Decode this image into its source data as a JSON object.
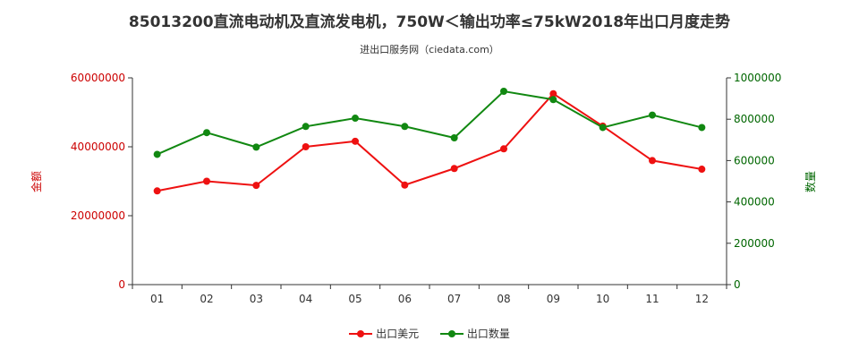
{
  "chart_data": {
    "type": "line",
    "title": "85013200直流电动机及直流发电机，750W＜输出功率≤75kW2018年出口月度走势",
    "subtitle": "进出口服务网（ciedata.com）",
    "categories": [
      "01",
      "02",
      "03",
      "04",
      "05",
      "06",
      "07",
      "08",
      "09",
      "10",
      "11",
      "12"
    ],
    "y_left": {
      "label": "金额",
      "ylim": [
        0,
        60000000
      ],
      "ticks": [
        "0",
        "20000000",
        "40000000",
        "60000000"
      ],
      "tick_values": [
        0,
        20000000,
        40000000,
        60000000
      ],
      "color": "#cc0000"
    },
    "y_right": {
      "label": "数量",
      "ylim": [
        0,
        1000000
      ],
      "ticks": [
        "0",
        "200000",
        "400000",
        "600000",
        "800000",
        "1000000"
      ],
      "tick_values": [
        0,
        200000,
        400000,
        600000,
        800000,
        1000000
      ],
      "color": "#006600"
    },
    "series": [
      {
        "name": "出口美元",
        "axis": "left",
        "color": "#ee1111",
        "values": [
          27200000,
          30000000,
          28800000,
          40000000,
          41600000,
          28900000,
          33700000,
          39400000,
          55400000,
          46000000,
          36000000,
          33500000
        ]
      },
      {
        "name": "出口数量",
        "axis": "right",
        "color": "#118811",
        "values": [
          630000,
          735000,
          665000,
          765000,
          805000,
          765000,
          710000,
          935000,
          895000,
          760000,
          820000,
          760000
        ]
      }
    ],
    "legend_position": "bottom-center",
    "grid": false
  }
}
